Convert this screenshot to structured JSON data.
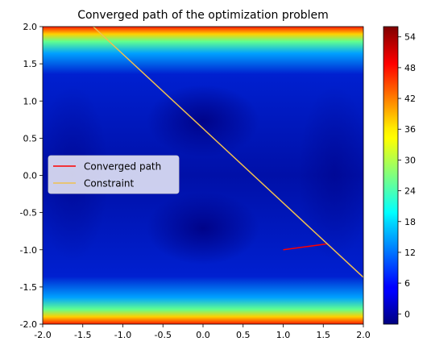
{
  "chart_data": {
    "type": "heatmap",
    "title": "Converged path of the optimization problem",
    "xlabel": "",
    "ylabel": "",
    "xlim": [
      -2.0,
      2.0
    ],
    "ylim": [
      -2.0,
      2.0
    ],
    "x_ticks": [
      "-2.0",
      "-1.5",
      "-1.0",
      "-0.5",
      "0.0",
      "0.5",
      "1.0",
      "1.5",
      "2.0"
    ],
    "y_ticks": [
      "2.0",
      "1.5",
      "1.0",
      "0.5",
      "0.0",
      "-0.5",
      "-1.0",
      "-1.5",
      "-2.0"
    ],
    "colormap": "jet",
    "colorbar_range": [
      -2,
      56
    ],
    "colorbar_ticks": [
      "54",
      "48",
      "42",
      "36",
      "30",
      "24",
      "18",
      "12",
      "6",
      "0"
    ],
    "grid": false,
    "legend_position": "center-left",
    "series": [
      {
        "name": "Converged path",
        "color": "#ff0000",
        "x": [
          1.0,
          1.55
        ],
        "y": [
          -1.0,
          -0.92
        ]
      },
      {
        "name": "Constraint",
        "color": "#f0c050",
        "x": [
          -1.37,
          2.0
        ],
        "y": [
          2.0,
          -1.37
        ]
      }
    ]
  }
}
